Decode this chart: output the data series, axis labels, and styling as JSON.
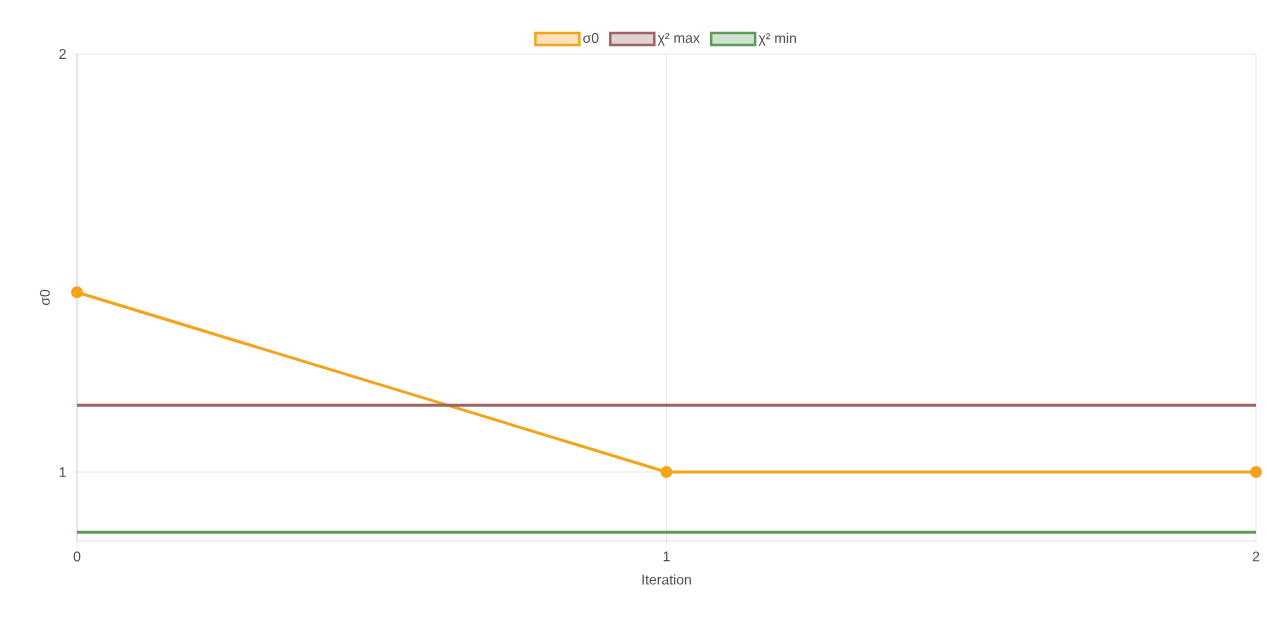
{
  "chart_data": {
    "type": "line",
    "xlabel": "Iteration",
    "ylabel": "σ0",
    "x": [
      0,
      1,
      2
    ],
    "series": [
      {
        "name": "σ0",
        "color": "#f5a31a",
        "values": [
          1.43,
          1.0,
          1.0
        ],
        "marker": "circle"
      },
      {
        "name": "χ² max",
        "color": "#9e6464",
        "values": [
          1.16,
          1.16,
          1.16
        ],
        "marker": "none"
      },
      {
        "name": "χ² min",
        "color": "#5e9a5e",
        "values": [
          0.856,
          0.856,
          0.856
        ],
        "marker": "none"
      }
    ],
    "xlim": [
      0,
      2
    ],
    "xticks": [
      0,
      1,
      2
    ],
    "ylim": [
      0.835,
      2
    ],
    "yticks": [
      1,
      2
    ],
    "grid": true,
    "legend": "top",
    "line_style": "solid"
  }
}
